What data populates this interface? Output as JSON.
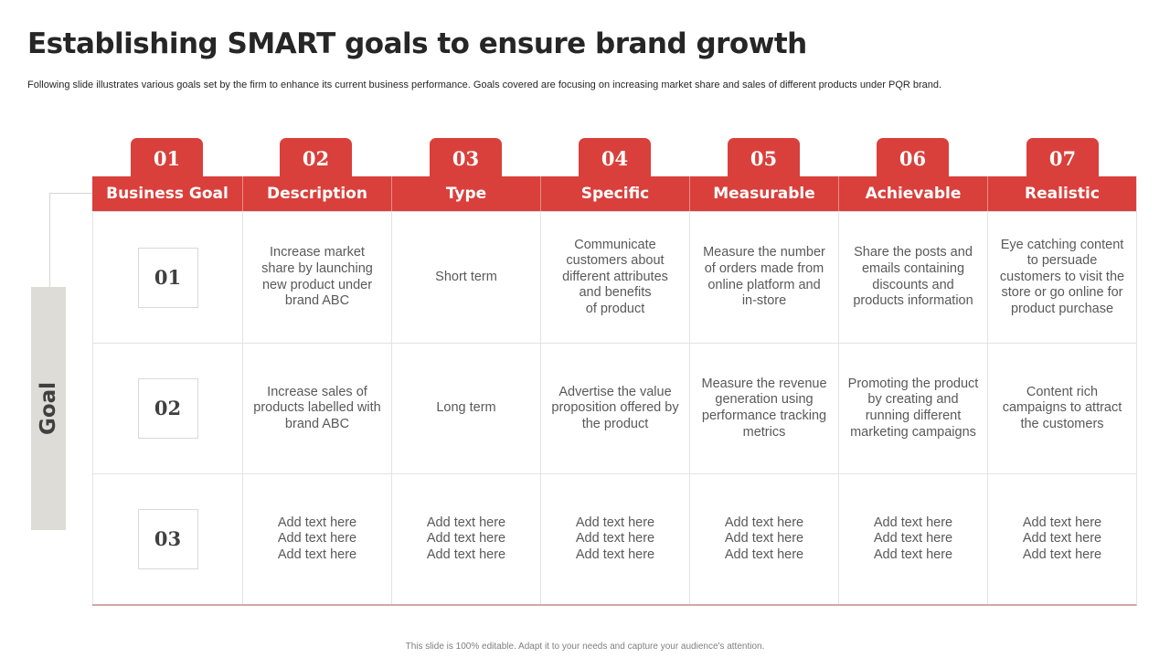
{
  "title": "Establishing SMART goals to ensure brand growth",
  "subtitle": "Following slide illustrates various goals set by the firm to enhance its current business performance. Goals covered are focusing on increasing market share and sales of different products under PQR brand.",
  "tabs": [
    "01",
    "02",
    "03",
    "04",
    "05",
    "06",
    "07"
  ],
  "headers": [
    "Business Goal",
    "Description",
    "Type",
    "Specific",
    "Measurable",
    "Achievable",
    "Realistic"
  ],
  "side_label": "Goal",
  "rows": [
    {
      "number": "01",
      "cells": [
        "Increase market\nshare by launching\nnew product under\nbrand ABC",
        "Short term",
        "Communicate\ncustomers about\ndifferent attributes\nand benefits\nof product",
        "Measure the number\nof orders made from\nonline platform and\nin-store",
        "Share the posts and\nemails containing\ndiscounts and\nproducts information",
        "Eye catching content\nto persuade\ncustomers to visit the\nstore or go online for\nproduct purchase"
      ]
    },
    {
      "number": "02",
      "cells": [
        "Increase sales of\nproducts labelled with\nbrand ABC",
        "Long term",
        "Advertise the value\nproposition offered by\nthe product",
        "Measure the revenue\ngeneration using\nperformance tracking\nmetrics",
        "Promoting the product\nby creating and\nrunning different\nmarketing campaigns",
        "Content rich\ncampaigns to attract\nthe customers"
      ]
    },
    {
      "number": "03",
      "cells": [
        "Add text here\nAdd text here\nAdd text here",
        "Add text here\nAdd text here\nAdd text here",
        "Add text here\nAdd text here\nAdd text here",
        "Add text here\nAdd text here\nAdd text here",
        "Add text here\nAdd text here\nAdd text here",
        "Add text here\nAdd text here\nAdd text here"
      ]
    }
  ],
  "footer": "This slide is 100% editable. Adapt it to your needs and capture your audience's attention.",
  "colors": {
    "accent": "#d9403b",
    "side_bar": "#dedcd6",
    "title": "#262626",
    "body_text": "#595959"
  }
}
